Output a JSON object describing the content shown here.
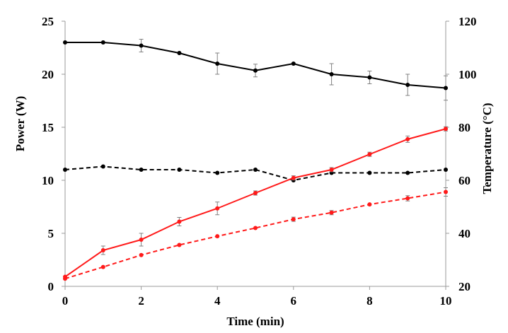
{
  "chart_data": {
    "type": "line",
    "title": "",
    "xlabel": "Time (min)",
    "ylabel": "Power (W)",
    "y2label": "Temperature (°C)",
    "xlim": [
      0,
      10
    ],
    "ylim": [
      0,
      25
    ],
    "y2lim": [
      20,
      120
    ],
    "xticks": [
      0,
      2,
      4,
      6,
      8,
      10
    ],
    "yticks": [
      0,
      5,
      10,
      15,
      20,
      25
    ],
    "y2ticks": [
      20,
      40,
      60,
      80,
      100,
      120
    ],
    "grid": false,
    "legend": "none",
    "x": [
      0,
      1,
      2,
      3,
      4,
      5,
      6,
      7,
      8,
      9,
      10
    ],
    "series": [
      {
        "axis": "left",
        "color": "#000000",
        "dashed": false,
        "values": [
          23.0,
          23.0,
          22.7,
          22.0,
          21.0,
          20.35,
          21.0,
          20.0,
          19.7,
          19.0,
          18.7
        ],
        "errors": [
          0,
          0,
          0.6,
          0,
          1.0,
          0.6,
          0,
          1.0,
          0.6,
          1.0,
          1.15
        ]
      },
      {
        "axis": "left",
        "color": "#000000",
        "dashed": true,
        "values": [
          11.0,
          11.3,
          11.0,
          11.0,
          10.7,
          11.0,
          10.0,
          10.7,
          10.7,
          10.7,
          11.0
        ],
        "errors": [
          0,
          0,
          0,
          0,
          0,
          0,
          0,
          0,
          0,
          0,
          0
        ]
      },
      {
        "axis": "right",
        "color": "#ff1a1a",
        "dashed": false,
        "values": [
          23.6,
          33.6,
          37.6,
          44.4,
          49.4,
          55.2,
          60.9,
          64.0,
          69.8,
          75.5,
          79.4
        ],
        "errors": [
          0,
          1.6,
          2.4,
          1.6,
          2.4,
          0.8,
          0.8,
          0.8,
          0.8,
          1.2,
          0.8
        ]
      },
      {
        "axis": "right",
        "color": "#ff1a1a",
        "dashed": true,
        "values": [
          22.9,
          27.3,
          31.8,
          35.6,
          38.9,
          42.0,
          45.3,
          47.8,
          50.9,
          53.2,
          55.6
        ],
        "errors": [
          0,
          0,
          0,
          0,
          0,
          0,
          0.8,
          0.8,
          0,
          1.0,
          1.6
        ]
      }
    ]
  }
}
